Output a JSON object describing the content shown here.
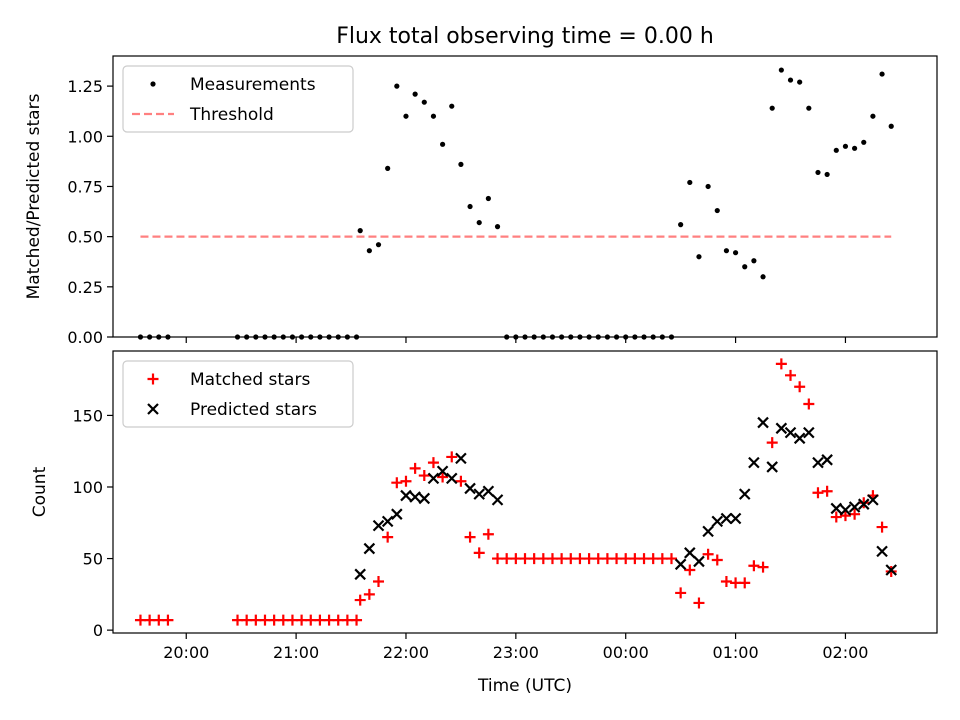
{
  "figure": {
    "title": "Flux total observing time = 0.00 h"
  },
  "colors": {
    "measurement": "#000000",
    "threshold": "#ff8080",
    "matched": "#ff0000",
    "predicted": "#000000"
  },
  "chart_data": [
    {
      "type": "scatter",
      "panel": "top",
      "title": "Flux total observing time = 0.00 h",
      "xlabel": "",
      "ylabel": "Matched/Predicted stars",
      "x_unit": "time (UTC)",
      "xlim": [
        "19:20",
        "02:50"
      ],
      "ylim": [
        0,
        1.4
      ],
      "yticks": [
        "0.00",
        "0.25",
        "0.50",
        "0.75",
        "1.00",
        "1.25"
      ],
      "grid": false,
      "legend": {
        "position": "top-left",
        "entries": [
          "Measurements",
          "Threshold"
        ]
      },
      "series": [
        {
          "name": "Measurements",
          "marker": "dot",
          "points": [
            [
              "19:35",
              0
            ],
            [
              "19:40",
              0
            ],
            [
              "19:45",
              0
            ],
            [
              "19:50",
              0
            ],
            [
              "20:28",
              0
            ],
            [
              "20:33",
              0
            ],
            [
              "20:38",
              0
            ],
            [
              "20:43",
              0
            ],
            [
              "20:48",
              0
            ],
            [
              "20:53",
              0
            ],
            [
              "20:58",
              0
            ],
            [
              "21:03",
              0
            ],
            [
              "21:08",
              0
            ],
            [
              "21:13",
              0
            ],
            [
              "21:18",
              0
            ],
            [
              "21:23",
              0
            ],
            [
              "21:28",
              0
            ],
            [
              "21:33",
              0
            ],
            [
              "21:35",
              0.53
            ],
            [
              "21:40",
              0.43
            ],
            [
              "21:45",
              0.46
            ],
            [
              "21:50",
              0.84
            ],
            [
              "21:55",
              1.25
            ],
            [
              "22:00",
              1.1
            ],
            [
              "22:05",
              1.21
            ],
            [
              "22:10",
              1.17
            ],
            [
              "22:15",
              1.1
            ],
            [
              "22:20",
              0.96
            ],
            [
              "22:25",
              1.15
            ],
            [
              "22:30",
              0.86
            ],
            [
              "22:35",
              0.65
            ],
            [
              "22:40",
              0.57
            ],
            [
              "22:45",
              0.69
            ],
            [
              "22:50",
              0.55
            ],
            [
              "22:55",
              0
            ],
            [
              "23:00",
              0
            ],
            [
              "23:05",
              0
            ],
            [
              "23:10",
              0
            ],
            [
              "23:15",
              0
            ],
            [
              "23:20",
              0
            ],
            [
              "23:25",
              0
            ],
            [
              "23:30",
              0
            ],
            [
              "23:35",
              0
            ],
            [
              "23:40",
              0
            ],
            [
              "23:45",
              0
            ],
            [
              "23:50",
              0
            ],
            [
              "23:55",
              0
            ],
            [
              "00:00",
              0
            ],
            [
              "00:05",
              0
            ],
            [
              "00:10",
              0
            ],
            [
              "00:15",
              0
            ],
            [
              "00:20",
              0
            ],
            [
              "00:25",
              0
            ],
            [
              "00:30",
              0.56
            ],
            [
              "00:35",
              0.77
            ],
            [
              "00:40",
              0.4
            ],
            [
              "00:45",
              0.75
            ],
            [
              "00:50",
              0.63
            ],
            [
              "00:55",
              0.43
            ],
            [
              "01:00",
              0.42
            ],
            [
              "01:05",
              0.35
            ],
            [
              "01:10",
              0.38
            ],
            [
              "01:15",
              0.3
            ],
            [
              "01:20",
              1.14
            ],
            [
              "01:25",
              1.33
            ],
            [
              "01:30",
              1.28
            ],
            [
              "01:35",
              1.27
            ],
            [
              "01:40",
              1.14
            ],
            [
              "01:45",
              0.82
            ],
            [
              "01:50",
              0.81
            ],
            [
              "01:55",
              0.93
            ],
            [
              "02:00",
              0.95
            ],
            [
              "02:05",
              0.94
            ],
            [
              "02:10",
              0.97
            ],
            [
              "02:15",
              1.1
            ],
            [
              "02:20",
              1.31
            ],
            [
              "02:25",
              1.05
            ]
          ]
        },
        {
          "name": "Threshold",
          "style": "dashed",
          "points": [
            [
              "19:35",
              0.5
            ],
            [
              "02:25",
              0.5
            ]
          ]
        }
      ]
    },
    {
      "type": "scatter",
      "panel": "bottom",
      "title": "",
      "xlabel": "Time (UTC)",
      "ylabel": "Count",
      "xlim": [
        "19:20",
        "02:50"
      ],
      "ylim": [
        -2,
        195
      ],
      "xticks": [
        "20:00",
        "21:00",
        "22:00",
        "23:00",
        "00:00",
        "01:00",
        "02:00"
      ],
      "yticks": [
        "0",
        "50",
        "100",
        "150"
      ],
      "grid": false,
      "legend": {
        "position": "top-left",
        "entries": [
          "Matched stars",
          "Predicted stars"
        ]
      },
      "series": [
        {
          "name": "Matched stars",
          "marker": "plus",
          "points": [
            [
              "19:35",
              7
            ],
            [
              "19:40",
              7
            ],
            [
              "19:45",
              7
            ],
            [
              "19:50",
              7
            ],
            [
              "20:28",
              7
            ],
            [
              "20:33",
              7
            ],
            [
              "20:38",
              7
            ],
            [
              "20:43",
              7
            ],
            [
              "20:48",
              7
            ],
            [
              "20:53",
              7
            ],
            [
              "20:58",
              7
            ],
            [
              "21:03",
              7
            ],
            [
              "21:08",
              7
            ],
            [
              "21:13",
              7
            ],
            [
              "21:18",
              7
            ],
            [
              "21:23",
              7
            ],
            [
              "21:28",
              7
            ],
            [
              "21:33",
              7
            ],
            [
              "21:35",
              21
            ],
            [
              "21:40",
              25
            ],
            [
              "21:45",
              34
            ],
            [
              "21:50",
              65
            ],
            [
              "21:55",
              103
            ],
            [
              "22:00",
              104
            ],
            [
              "22:05",
              113
            ],
            [
              "22:10",
              108
            ],
            [
              "22:15",
              117
            ],
            [
              "22:20",
              107
            ],
            [
              "22:25",
              121
            ],
            [
              "22:30",
              104
            ],
            [
              "22:35",
              65
            ],
            [
              "22:40",
              54
            ],
            [
              "22:45",
              67
            ],
            [
              "22:50",
              50
            ],
            [
              "22:55",
              50
            ],
            [
              "23:00",
              50
            ],
            [
              "23:05",
              50
            ],
            [
              "23:10",
              50
            ],
            [
              "23:15",
              50
            ],
            [
              "23:20",
              50
            ],
            [
              "23:25",
              50
            ],
            [
              "23:30",
              50
            ],
            [
              "23:35",
              50
            ],
            [
              "23:40",
              50
            ],
            [
              "23:45",
              50
            ],
            [
              "23:50",
              50
            ],
            [
              "23:55",
              50
            ],
            [
              "00:00",
              50
            ],
            [
              "00:05",
              50
            ],
            [
              "00:10",
              50
            ],
            [
              "00:15",
              50
            ],
            [
              "00:20",
              50
            ],
            [
              "00:25",
              50
            ],
            [
              "00:30",
              26
            ],
            [
              "00:35",
              42
            ],
            [
              "00:40",
              19
            ],
            [
              "00:45",
              53
            ],
            [
              "00:50",
              49
            ],
            [
              "00:55",
              34
            ],
            [
              "01:00",
              33
            ],
            [
              "01:05",
              33
            ],
            [
              "01:10",
              45
            ],
            [
              "01:15",
              44
            ],
            [
              "01:20",
              131
            ],
            [
              "01:25",
              186
            ],
            [
              "01:30",
              178
            ],
            [
              "01:35",
              170
            ],
            [
              "01:40",
              158
            ],
            [
              "01:45",
              96
            ],
            [
              "01:50",
              97
            ],
            [
              "01:55",
              79
            ],
            [
              "02:00",
              80
            ],
            [
              "02:05",
              81
            ],
            [
              "02:10",
              89
            ],
            [
              "02:15",
              94
            ],
            [
              "02:20",
              72
            ],
            [
              "02:25",
              41
            ]
          ]
        },
        {
          "name": "Predicted stars",
          "marker": "x",
          "points": [
            [
              "21:35",
              39
            ],
            [
              "21:40",
              57
            ],
            [
              "21:45",
              73
            ],
            [
              "21:50",
              76
            ],
            [
              "21:55",
              81
            ],
            [
              "22:00",
              94
            ],
            [
              "22:05",
              93
            ],
            [
              "22:10",
              92
            ],
            [
              "22:15",
              106
            ],
            [
              "22:20",
              111
            ],
            [
              "22:25",
              106
            ],
            [
              "22:30",
              120
            ],
            [
              "22:35",
              99
            ],
            [
              "22:40",
              95
            ],
            [
              "22:45",
              97
            ],
            [
              "22:50",
              91
            ],
            [
              "00:30",
              46
            ],
            [
              "00:35",
              54
            ],
            [
              "00:40",
              48
            ],
            [
              "00:45",
              69
            ],
            [
              "00:50",
              76
            ],
            [
              "00:55",
              78
            ],
            [
              "01:00",
              78
            ],
            [
              "01:05",
              95
            ],
            [
              "01:10",
              117
            ],
            [
              "01:15",
              145
            ],
            [
              "01:20",
              114
            ],
            [
              "01:25",
              141
            ],
            [
              "01:30",
              138
            ],
            [
              "01:35",
              134
            ],
            [
              "01:40",
              138
            ],
            [
              "01:45",
              117
            ],
            [
              "01:50",
              119
            ],
            [
              "01:55",
              85
            ],
            [
              "02:00",
              84
            ],
            [
              "02:05",
              86
            ],
            [
              "02:10",
              88
            ],
            [
              "02:15",
              91
            ],
            [
              "02:20",
              55
            ],
            [
              "02:25",
              42
            ]
          ]
        }
      ]
    }
  ]
}
